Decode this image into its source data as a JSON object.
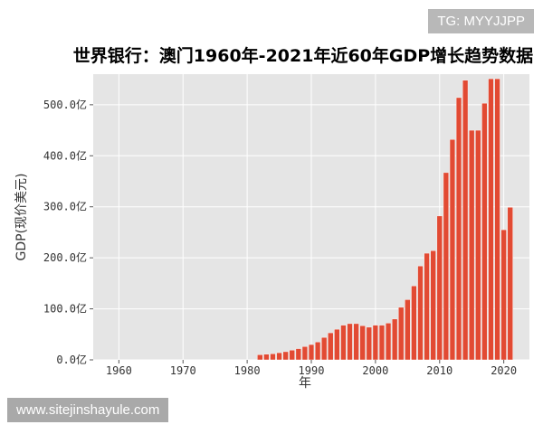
{
  "badges": {
    "tag": "TG: MYYJJPP",
    "site": "www.sitejinshayule.com"
  },
  "chart_data": {
    "type": "bar",
    "title": "世界银行：澳门1960年-2021年近60年GDP增长趋势数据",
    "xlabel": "年",
    "ylabel": "GDP(现价美元)",
    "xlim": [
      1956,
      2024
    ],
    "ylim": [
      0,
      560
    ],
    "x_ticks": [
      1960,
      1970,
      1980,
      1990,
      2000,
      2010,
      2020
    ],
    "y_ticks": [
      {
        "value": 0,
        "label": "0.0亿"
      },
      {
        "value": 100,
        "label": "100.0亿"
      },
      {
        "value": 200,
        "label": "200.0亿"
      },
      {
        "value": 300,
        "label": "300.0亿"
      },
      {
        "value": 400,
        "label": "400.0亿"
      },
      {
        "value": 500,
        "label": "500.0亿"
      }
    ],
    "grid": true,
    "bar_color": "#e24a33",
    "background_color": "#e5e5e5",
    "x": [
      1982,
      1983,
      1984,
      1985,
      1986,
      1987,
      1988,
      1989,
      1990,
      1991,
      1992,
      1993,
      1994,
      1995,
      1996,
      1997,
      1998,
      1999,
      2000,
      2001,
      2002,
      2003,
      2004,
      2005,
      2006,
      2007,
      2008,
      2009,
      2010,
      2011,
      2012,
      2013,
      2014,
      2015,
      2016,
      2017,
      2018,
      2019,
      2020,
      2021
    ],
    "values": [
      10,
      11,
      12,
      14,
      16,
      19,
      22,
      26,
      30,
      35,
      44,
      53,
      60,
      68,
      71,
      71,
      67,
      64,
      68,
      68,
      72,
      80,
      103,
      118,
      145,
      184,
      209,
      214,
      282,
      367,
      432,
      514,
      548,
      450,
      450,
      503,
      551,
      551,
      255,
      299
    ]
  }
}
